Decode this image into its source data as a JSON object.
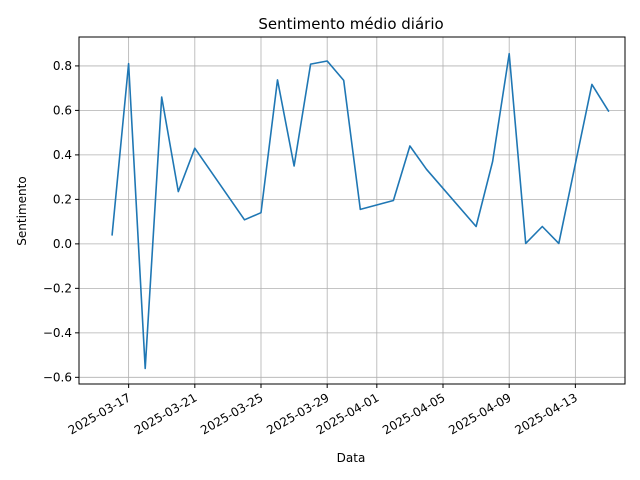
{
  "chart_data": {
    "type": "line",
    "title": "Sentimento médio diário",
    "xlabel": "Data",
    "ylabel": "Sentimento",
    "grid": true,
    "x_type": "date",
    "xlim": [
      "2025-03-14",
      "2025-04-16"
    ],
    "ylim": [
      -0.63,
      0.93
    ],
    "x_ticks": [
      "2025-03-17",
      "2025-03-21",
      "2025-03-25",
      "2025-03-29",
      "2025-04-01",
      "2025-04-05",
      "2025-04-09",
      "2025-04-13"
    ],
    "y_ticks": [
      -0.6,
      -0.4,
      -0.2,
      0.0,
      0.2,
      0.4,
      0.6,
      0.8
    ],
    "y_tick_labels": [
      "−0.6",
      "−0.4",
      "−0.2",
      "0.0",
      "0.2",
      "0.4",
      "0.6",
      "0.8"
    ],
    "series": [
      {
        "color": "#1f77b4",
        "points": [
          {
            "x": "2025-03-16",
            "y": 0.04
          },
          {
            "x": "2025-03-17",
            "y": 0.81
          },
          {
            "x": "2025-03-18",
            "y": -0.56
          },
          {
            "x": "2025-03-19",
            "y": 0.66
          },
          {
            "x": "2025-03-20",
            "y": 0.235
          },
          {
            "x": "2025-03-21",
            "y": 0.43
          },
          {
            "x": "2025-03-24",
            "y": 0.108
          },
          {
            "x": "2025-03-25",
            "y": 0.14
          },
          {
            "x": "2025-03-26",
            "y": 0.737
          },
          {
            "x": "2025-03-27",
            "y": 0.35
          },
          {
            "x": "2025-03-28",
            "y": 0.808
          },
          {
            "x": "2025-03-29",
            "y": 0.822
          },
          {
            "x": "2025-03-30",
            "y": 0.735
          },
          {
            "x": "2025-03-31",
            "y": 0.155
          },
          {
            "x": "2025-04-02",
            "y": 0.195
          },
          {
            "x": "2025-04-03",
            "y": 0.44
          },
          {
            "x": "2025-04-04",
            "y": 0.335
          },
          {
            "x": "2025-04-07",
            "y": 0.078
          },
          {
            "x": "2025-04-08",
            "y": 0.37
          },
          {
            "x": "2025-04-09",
            "y": 0.855
          },
          {
            "x": "2025-04-10",
            "y": 0.002
          },
          {
            "x": "2025-04-11",
            "y": 0.078
          },
          {
            "x": "2025-04-12",
            "y": 0.002
          },
          {
            "x": "2025-04-14",
            "y": 0.717
          },
          {
            "x": "2025-04-15",
            "y": 0.597
          }
        ]
      }
    ]
  }
}
